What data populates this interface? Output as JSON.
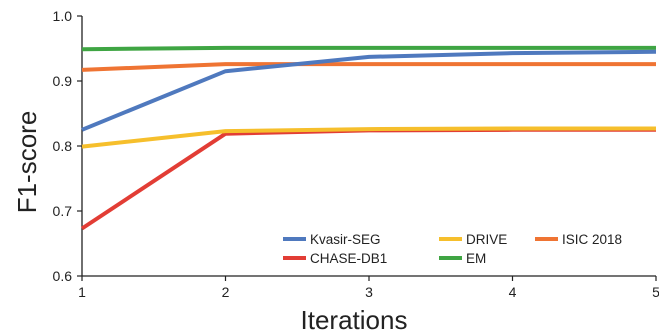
{
  "chart_data": {
    "type": "line",
    "title": "",
    "xlabel": "Iterations",
    "ylabel": "F1-score",
    "x": [
      1,
      2,
      3,
      4,
      5
    ],
    "xlim": [
      1,
      5
    ],
    "ylim": [
      0.6,
      1.0
    ],
    "xticks": [
      "1",
      "2",
      "3",
      "4",
      "5"
    ],
    "yticks": [
      "0.6",
      "0.7",
      "0.8",
      "0.9",
      "1.0"
    ],
    "grid": false,
    "legend_position": "bottom-right",
    "series": [
      {
        "name": "Kvasir-SEG",
        "color": "#4f79be",
        "values": [
          0.825,
          0.915,
          0.937,
          0.943,
          0.945
        ]
      },
      {
        "name": "CHASE-DB1",
        "color": "#e23d35",
        "values": [
          0.673,
          0.819,
          0.824,
          0.825,
          0.825
        ]
      },
      {
        "name": "DRIVE",
        "color": "#f6bf2c",
        "values": [
          0.799,
          0.823,
          0.826,
          0.827,
          0.827
        ]
      },
      {
        "name": "EM",
        "color": "#3fa543",
        "values": [
          0.949,
          0.951,
          0.951,
          0.951,
          0.951
        ]
      },
      {
        "name": "ISIC 2018",
        "color": "#ef7433",
        "values": [
          0.917,
          0.926,
          0.926,
          0.926,
          0.926
        ]
      }
    ]
  }
}
